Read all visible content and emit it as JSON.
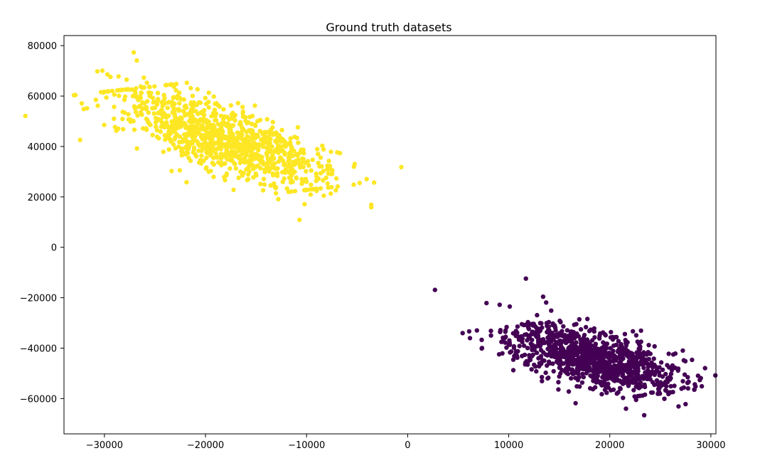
{
  "chart_data": {
    "type": "scatter",
    "title": "Ground truth datasets",
    "xlabel": "",
    "ylabel": "",
    "xlim": [
      -34000,
      30500
    ],
    "ylim": [
      -74000,
      84000
    ],
    "xticks": [
      -30000,
      -20000,
      -10000,
      0,
      10000,
      20000,
      30000
    ],
    "yticks": [
      -60000,
      -40000,
      -20000,
      0,
      20000,
      40000,
      60000,
      80000
    ],
    "xtick_labels": [
      "−30000",
      "−20000",
      "−10000",
      "0",
      "10000",
      "20000",
      "30000"
    ],
    "ytick_labels": [
      "−60000",
      "−40000",
      "−20000",
      "0",
      "20000",
      "40000",
      "60000",
      "80000"
    ],
    "grid": false,
    "series": [
      {
        "color": "#fde725",
        "points": [
          [
            -30700,
            69800
          ],
          [
            -30200,
            70100
          ],
          [
            -29700,
            68600
          ],
          [
            -29400,
            67600
          ],
          [
            -28600,
            67800
          ],
          [
            -27800,
            66500
          ],
          [
            -27100,
            77300
          ],
          [
            -26800,
            74100
          ],
          [
            -26400,
            63800
          ],
          [
            -26100,
            67300
          ],
          [
            -25800,
            65300
          ],
          [
            -25400,
            61200
          ],
          [
            -24700,
            58800
          ],
          [
            -24100,
            60400
          ],
          [
            -23200,
            56200
          ],
          [
            -22400,
            58800
          ],
          [
            -21300,
            53900
          ],
          [
            -20600,
            50100
          ],
          [
            -19800,
            48200
          ],
          [
            -19100,
            47200
          ],
          [
            -18400,
            44900
          ],
          [
            -17600,
            42600
          ],
          [
            -16900,
            41200
          ],
          [
            -16100,
            39300
          ],
          [
            -15400,
            37200
          ],
          [
            -14700,
            34900
          ],
          [
            -13800,
            33100
          ],
          [
            -13100,
            31200
          ],
          [
            -12400,
            29800
          ],
          [
            -11700,
            27600
          ],
          [
            -11000,
            27500
          ],
          [
            -10400,
            25800
          ],
          [
            -10700,
            10900
          ],
          [
            -10200,
            17100
          ],
          [
            -9600,
            20900
          ],
          [
            -9000,
            22400
          ],
          [
            -8300,
            20500
          ],
          [
            -7600,
            21300
          ],
          [
            -7100,
            22600
          ],
          [
            -3600,
            15900
          ],
          [
            -3600,
            16900
          ],
          [
            -12800,
            19100
          ],
          [
            -14300,
            22600
          ]
        ],
        "cluster": {
          "start": [
            -27000,
            63000
          ],
          "end": [
            -9500,
            23000
          ],
          "count": 1020,
          "spread": 3400
        }
      },
      {
        "color": "#440154",
        "points": [
          [
            2700,
            -16900
          ],
          [
            7800,
            -22100
          ],
          [
            9100,
            -22800
          ],
          [
            10100,
            -23500
          ],
          [
            11700,
            -12400
          ],
          [
            11300,
            -30500
          ],
          [
            11900,
            -29700
          ],
          [
            12400,
            -31000
          ],
          [
            12800,
            -26900
          ],
          [
            13400,
            -19600
          ],
          [
            13700,
            -21900
          ],
          [
            14200,
            -25100
          ],
          [
            15000,
            -34100
          ],
          [
            15800,
            -37200
          ],
          [
            16700,
            -39600
          ],
          [
            17500,
            -41200
          ],
          [
            18300,
            -43300
          ],
          [
            19100,
            -45800
          ],
          [
            19900,
            -47200
          ],
          [
            20700,
            -49500
          ],
          [
            21500,
            -51700
          ],
          [
            22300,
            -53100
          ],
          [
            23100,
            -55200
          ],
          [
            23400,
            -66600
          ],
          [
            24100,
            -57600
          ],
          [
            24800,
            -56200
          ],
          [
            25400,
            -60100
          ],
          [
            25800,
            -58200
          ],
          [
            26800,
            -63100
          ],
          [
            27500,
            -62200
          ],
          [
            21600,
            -64000
          ],
          [
            22600,
            -60500
          ]
        ],
        "cluster": {
          "start": [
            12200,
            -30500
          ],
          "end": [
            25000,
            -58000
          ],
          "count": 1020,
          "spread": 3200
        }
      }
    ]
  }
}
